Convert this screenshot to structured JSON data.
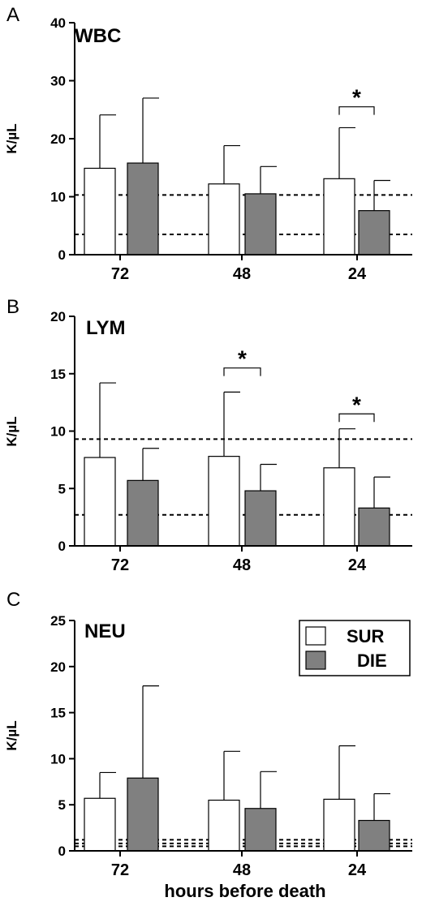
{
  "chart_data": [
    {
      "type": "bar",
      "panel_letter": "A",
      "title": "WBC",
      "ylabel": "K/µL",
      "xlabel": "",
      "categories": [
        "72",
        "48",
        "24"
      ],
      "ylim": [
        0,
        40
      ],
      "yticks": [
        0,
        10,
        20,
        30,
        40
      ],
      "series": [
        {
          "name": "SUR",
          "values": [
            14.9,
            12.2,
            13.1
          ],
          "errors": [
            9.2,
            6.6,
            8.8
          ],
          "color": "#ffffff"
        },
        {
          "name": "DIE",
          "values": [
            15.8,
            10.5,
            7.6
          ],
          "errors": [
            11.2,
            4.7,
            5.2
          ],
          "color": "#808080"
        }
      ],
      "reference_lines": [
        3.5,
        10.3
      ],
      "significance": [
        {
          "category": "24",
          "label": "*",
          "y": 25.5
        }
      ],
      "legend": false
    },
    {
      "type": "bar",
      "panel_letter": "B",
      "title": "LYM",
      "ylabel": "K/µL",
      "xlabel": "",
      "categories": [
        "72",
        "48",
        "24"
      ],
      "ylim": [
        0,
        20
      ],
      "yticks": [
        0,
        5,
        10,
        15,
        20
      ],
      "series": [
        {
          "name": "SUR",
          "values": [
            7.7,
            7.8,
            6.8
          ],
          "errors": [
            6.5,
            5.6,
            3.4
          ],
          "color": "#ffffff"
        },
        {
          "name": "DIE",
          "values": [
            5.7,
            4.8,
            3.3
          ],
          "errors": [
            2.8,
            2.3,
            2.7
          ],
          "color": "#808080"
        }
      ],
      "reference_lines": [
        2.7,
        9.3
      ],
      "significance": [
        {
          "category": "48",
          "label": "*",
          "y": 15.5
        },
        {
          "category": "24",
          "label": "*",
          "y": 11.5
        }
      ],
      "legend": false
    },
    {
      "type": "bar",
      "panel_letter": "C",
      "title": "NEU",
      "ylabel": "K/µL",
      "xlabel": "hours before death",
      "categories": [
        "72",
        "48",
        "24"
      ],
      "ylim": [
        0,
        25
      ],
      "yticks": [
        0,
        5,
        10,
        15,
        20,
        25
      ],
      "series": [
        {
          "name": "SUR",
          "values": [
            5.7,
            5.5,
            5.6
          ],
          "errors": [
            2.8,
            5.3,
            5.8
          ],
          "color": "#ffffff"
        },
        {
          "name": "DIE",
          "values": [
            7.9,
            4.6,
            3.3
          ],
          "errors": [
            10.0,
            4.0,
            2.9
          ],
          "color": "#808080"
        }
      ],
      "reference_lines": [
        0.5,
        0.8,
        1.2
      ],
      "significance": [],
      "legend": true,
      "legend_placement": "top-right"
    }
  ]
}
